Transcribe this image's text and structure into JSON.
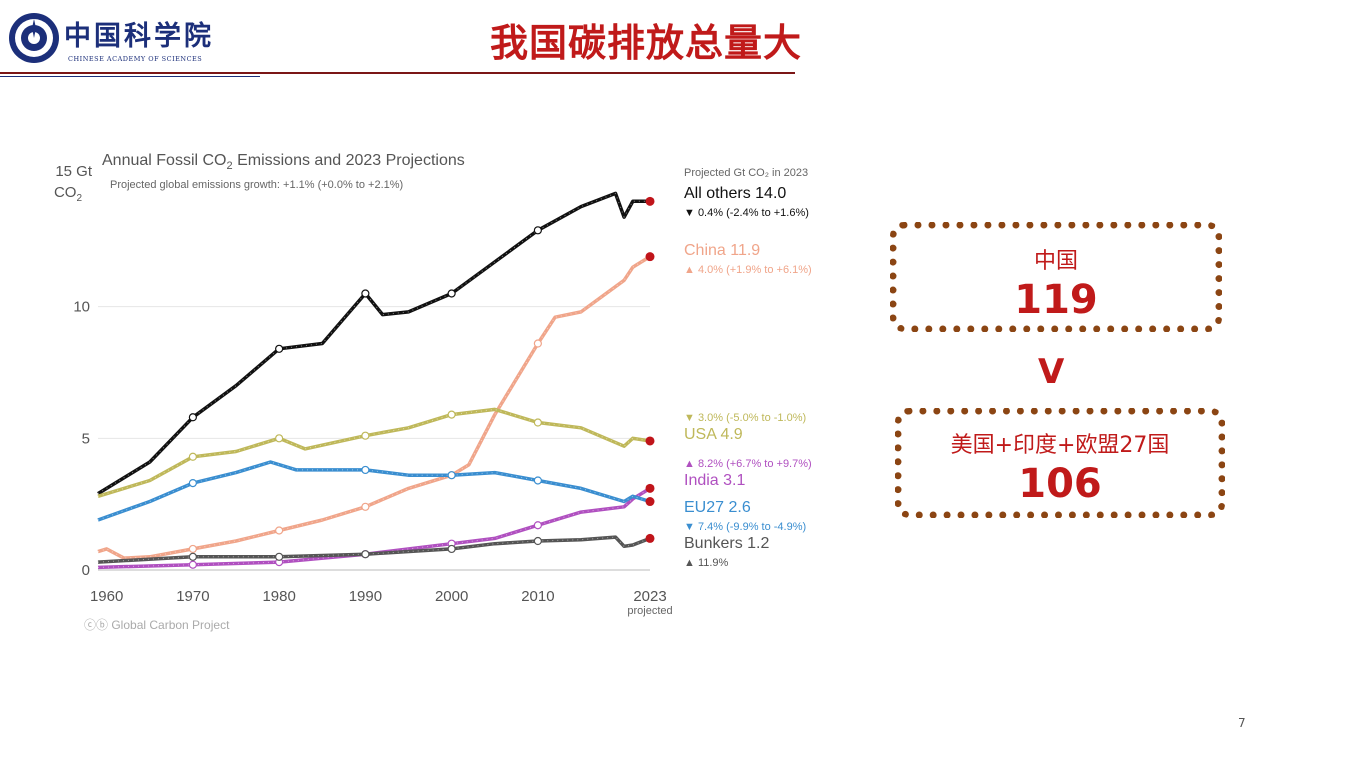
{
  "header": {
    "logo_text": "中国科学院",
    "logo_subtext": "CHINESE ACADEMY OF SCIENCES",
    "title": "我国碳排放总量大"
  },
  "comparison": {
    "china_label": "中国",
    "china_value": "119",
    "comparator": "V",
    "others_label": "美国+印度+欧盟27国",
    "others_value": "106",
    "accent_color": "#c01a1a",
    "border_color": "#8b4513"
  },
  "page_number": "7",
  "chart_data": {
    "type": "line",
    "title": "Annual Fossil CO",
    "title_sub": "2",
    "title_rest": " Emissions and 2023 Projections",
    "subtitle": "Projected global emissions growth: +1.1% (+0.0% to +2.1%)",
    "ylabel_line1": "15 Gt",
    "ylabel_line2": "CO",
    "ylabel_sub": "2",
    "legend_header": "Projected Gt CO₂ in 2023",
    "source": "Global Carbon Project",
    "xlim": [
      1959,
      2023
    ],
    "ylim": [
      0,
      15
    ],
    "x_ticks": [
      "1960",
      "1970",
      "1980",
      "1990",
      "2000",
      "2010",
      "2023"
    ],
    "x_tick_values": [
      1960,
      1970,
      1980,
      1990,
      2000,
      2010,
      2023
    ],
    "x_tick_note": "projected",
    "y_ticks": [
      "0",
      "5",
      "10"
    ],
    "y_tick_values": [
      0,
      5,
      10
    ],
    "grid": true,
    "series": [
      {
        "name": "All others 14.0",
        "color": "#111111",
        "growth": "▼ 0.4% (-2.4% to +1.6%)",
        "x": [
          1959,
          1965,
          1970,
          1975,
          1980,
          1985,
          1990,
          1992,
          1995,
          2000,
          2005,
          2010,
          2015,
          2019,
          2020,
          2021,
          2023
        ],
        "y": [
          2.9,
          4.1,
          5.8,
          7.0,
          8.4,
          8.6,
          10.5,
          9.7,
          9.8,
          10.5,
          11.7,
          12.9,
          13.8,
          14.3,
          13.4,
          14.0,
          14.0
        ]
      },
      {
        "name": "China 11.9",
        "color": "#f0a58a",
        "growth": "▲ 4.0% (+1.9% to +6.1%)",
        "x": [
          1959,
          1960,
          1962,
          1965,
          1970,
          1975,
          1980,
          1985,
          1990,
          1995,
          2000,
          2002,
          2005,
          2010,
          2012,
          2015,
          2020,
          2021,
          2023
        ],
        "y": [
          0.7,
          0.8,
          0.45,
          0.5,
          0.8,
          1.1,
          1.5,
          1.9,
          2.4,
          3.1,
          3.6,
          4.0,
          5.9,
          8.6,
          9.6,
          9.8,
          11.0,
          11.5,
          11.9
        ]
      },
      {
        "name": "USA 4.9",
        "color": "#bfb85a",
        "growth": "▼ 3.0% (-5.0% to -1.0%)",
        "x": [
          1959,
          1965,
          1970,
          1975,
          1980,
          1983,
          1990,
          1995,
          2000,
          2005,
          2010,
          2015,
          2020,
          2021,
          2023
        ],
        "y": [
          2.8,
          3.4,
          4.3,
          4.5,
          5.0,
          4.6,
          5.1,
          5.4,
          5.9,
          6.1,
          5.6,
          5.4,
          4.7,
          5.0,
          4.9
        ]
      },
      {
        "name": "India 3.1",
        "color": "#b050c0",
        "growth": "▲ 8.2% (+6.7% to +9.7%)",
        "x": [
          1959,
          1970,
          1980,
          1990,
          2000,
          2005,
          2010,
          2015,
          2020,
          2021,
          2023
        ],
        "y": [
          0.1,
          0.2,
          0.3,
          0.6,
          1.0,
          1.2,
          1.7,
          2.2,
          2.4,
          2.7,
          3.1
        ]
      },
      {
        "name": "EU27 2.6",
        "color": "#3a8ed0",
        "growth": "▼ 7.4% (-9.9% to -4.9%)",
        "x": [
          1959,
          1965,
          1970,
          1975,
          1979,
          1982,
          1985,
          1990,
          1995,
          2000,
          2005,
          2010,
          2015,
          2020,
          2021,
          2023
        ],
        "y": [
          1.9,
          2.6,
          3.3,
          3.7,
          4.1,
          3.8,
          3.8,
          3.8,
          3.6,
          3.6,
          3.7,
          3.4,
          3.1,
          2.6,
          2.8,
          2.6
        ]
      },
      {
        "name": "Bunkers 1.2",
        "color": "#555555",
        "growth": "▲ 11.9%",
        "x": [
          1959,
          1970,
          1980,
          1990,
          2000,
          2005,
          2010,
          2015,
          2019,
          2020,
          2021,
          2023
        ],
        "y": [
          0.3,
          0.5,
          0.5,
          0.6,
          0.8,
          1.0,
          1.1,
          1.15,
          1.25,
          0.9,
          0.95,
          1.2
        ]
      }
    ]
  }
}
